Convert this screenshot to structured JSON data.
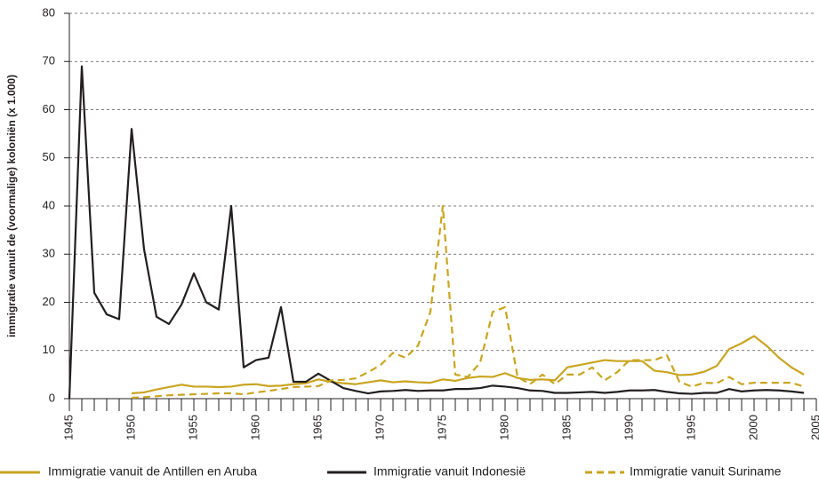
{
  "chart_data": {
    "type": "line",
    "y_label": "immigratie vanuit de (voormalige) koloniën (x 1.000)",
    "x": [
      1945,
      1946,
      1947,
      1948,
      1949,
      1950,
      1951,
      1952,
      1953,
      1954,
      1955,
      1956,
      1957,
      1958,
      1959,
      1960,
      1961,
      1962,
      1963,
      1964,
      1965,
      1966,
      1967,
      1968,
      1969,
      1970,
      1971,
      1972,
      1973,
      1974,
      1975,
      1976,
      1977,
      1978,
      1979,
      1980,
      1981,
      1982,
      1983,
      1984,
      1985,
      1986,
      1987,
      1988,
      1989,
      1990,
      1991,
      1992,
      1993,
      1994,
      1995,
      1996,
      1997,
      1998,
      1999,
      2000,
      2001,
      2002,
      2003,
      2004
    ],
    "series": [
      {
        "name": "Immigratie vanuit de Antillen en Aruba",
        "color": "#c9a520",
        "style": "solid",
        "values": [
          null,
          null,
          null,
          null,
          null,
          1.1,
          1.3,
          1.9,
          2.4,
          2.9,
          2.5,
          2.5,
          2.4,
          2.5,
          2.9,
          3,
          2.6,
          2.7,
          3,
          3.2,
          4,
          3.5,
          3.2,
          3,
          3.4,
          3.8,
          3.4,
          3.6,
          3.4,
          3.3,
          4,
          3.7,
          4.3,
          4.6,
          4.5,
          5.3,
          4.3,
          3.9,
          4,
          3.8,
          6.5,
          7,
          7.5,
          8,
          7.8,
          7.8,
          7.8,
          5.8,
          5.5,
          4.9,
          5,
          5.6,
          6.8,
          10.3,
          11.5,
          13,
          11,
          8.5,
          6.5,
          5
        ]
      },
      {
        "name": "Immigratie vanuit Indonesië",
        "color": "#231f20",
        "style": "solid",
        "values": [
          0,
          69,
          22,
          17.5,
          16.5,
          56,
          31,
          17,
          15.5,
          19.5,
          26,
          20,
          18.5,
          40,
          6.5,
          8,
          8.5,
          19,
          3.5,
          3.5,
          5.2,
          3.7,
          2.2,
          1.6,
          1.1,
          1.5,
          1.6,
          1.8,
          1.6,
          1.7,
          1.7,
          2,
          2,
          2.2,
          2.7,
          2.5,
          2.2,
          1.7,
          1.6,
          1.2,
          1.2,
          1.3,
          1.4,
          1.2,
          1.4,
          1.7,
          1.7,
          1.8,
          1.4,
          1.1,
          1,
          1.2,
          1.2,
          2,
          1.5,
          1.7,
          1.8,
          1.7,
          1.5,
          1.2
        ]
      },
      {
        "name": "Immigratie vanuit Suriname",
        "color": "#c9a520",
        "style": "dashed",
        "values": [
          null,
          null,
          null,
          null,
          null,
          0.2,
          0.3,
          0.5,
          0.7,
          0.8,
          0.9,
          1,
          1.1,
          1.1,
          0.9,
          1.3,
          1.6,
          2,
          2.4,
          2.5,
          2.6,
          3.8,
          3.9,
          4.2,
          5.5,
          7,
          9.5,
          8.5,
          11,
          18,
          40,
          5,
          4.5,
          7.5,
          18,
          19,
          4.5,
          3,
          5,
          3,
          5,
          5,
          6.5,
          3.8,
          5.5,
          8,
          8,
          8,
          9,
          3.5,
          2.5,
          3.3,
          3.2,
          4.5,
          3,
          3.3,
          3.3,
          3.3,
          3.3,
          2.5
        ]
      }
    ],
    "xlim": [
      1945,
      2005
    ],
    "xticks": [
      1945,
      1950,
      1955,
      1960,
      1965,
      1970,
      1975,
      1980,
      1985,
      1990,
      1995,
      2000,
      2005
    ],
    "ylim": [
      0,
      80
    ],
    "yticks": [
      0,
      10,
      20,
      30,
      40,
      50,
      60,
      70,
      80
    ],
    "grid": true,
    "legend": "bottom"
  }
}
